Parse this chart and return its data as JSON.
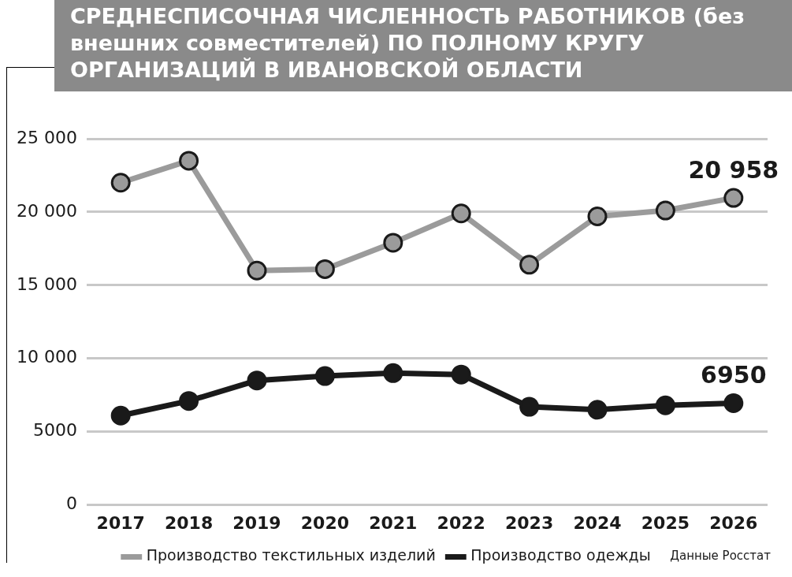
{
  "chart_data": {
    "type": "line",
    "title": "СРЕДНЕСПИСОЧНАЯ ЧИСЛЕННОСТЬ РАБОТНИКОВ (без внешних совместителей) ПО ПОЛНОМУ КРУГУ ОРГАНИЗАЦИЙ В ИВАНОВСКОЙ ОБЛАСТИ",
    "categories": [
      "2017",
      "2018",
      "2019",
      "2020",
      "2021",
      "2022",
      "2023",
      "2024",
      "2025",
      "2026"
    ],
    "series": [
      {
        "name": "Производство текстильных изделий",
        "color": "#9b9b9b",
        "values": [
          22000,
          23500,
          16000,
          16100,
          17900,
          19900,
          16400,
          19700,
          20100,
          20958
        ],
        "value_labels": [
          null,
          null,
          null,
          null,
          null,
          null,
          null,
          null,
          null,
          "20 958"
        ]
      },
      {
        "name": "Производство одежды",
        "color": "#1a1a1a",
        "values": [
          6100,
          7100,
          8500,
          8800,
          9000,
          8900,
          6700,
          6500,
          6800,
          6950
        ],
        "value_labels": [
          null,
          null,
          null,
          null,
          null,
          null,
          null,
          null,
          null,
          "6950"
        ]
      }
    ],
    "ylim": [
      0,
      25000
    ],
    "yticks": [
      0,
      5000,
      {
        "value": 10000,
        "label": "10 000"
      },
      {
        "value": 15000,
        "label": "15 000"
      },
      {
        "value": 20000,
        "label": "20 000"
      },
      {
        "value": 25000,
        "label": "25 000"
      }
    ],
    "grid": "y",
    "legend": "bottom",
    "marker": "circle",
    "line_style": "solid",
    "annotations": [
      "Данные Росстат"
    ]
  }
}
